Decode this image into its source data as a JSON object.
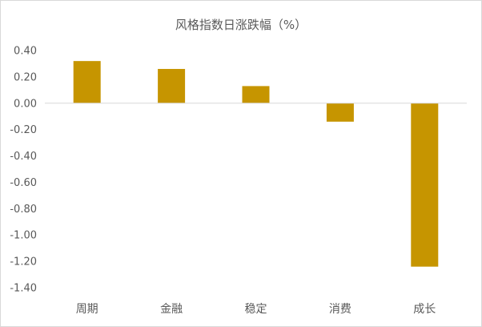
{
  "chart_data": {
    "type": "bar",
    "title": "风格指数日涨跌幅（%）",
    "categories": [
      "周期",
      "金融",
      "稳定",
      "消费",
      "成长"
    ],
    "values": [
      0.32,
      0.26,
      0.13,
      -0.14,
      -1.24
    ],
    "ylim": [
      -1.4,
      0.4
    ],
    "yticks": [
      "0.40",
      "0.20",
      "0.00",
      "-0.20",
      "-0.40",
      "-0.60",
      "-0.80",
      "-1.00",
      "-1.20",
      "-1.40"
    ],
    "grid": false,
    "legend": "none",
    "colors": {
      "bar": "#c69500",
      "axis": "#d9d9d9",
      "text": "#595959"
    }
  }
}
